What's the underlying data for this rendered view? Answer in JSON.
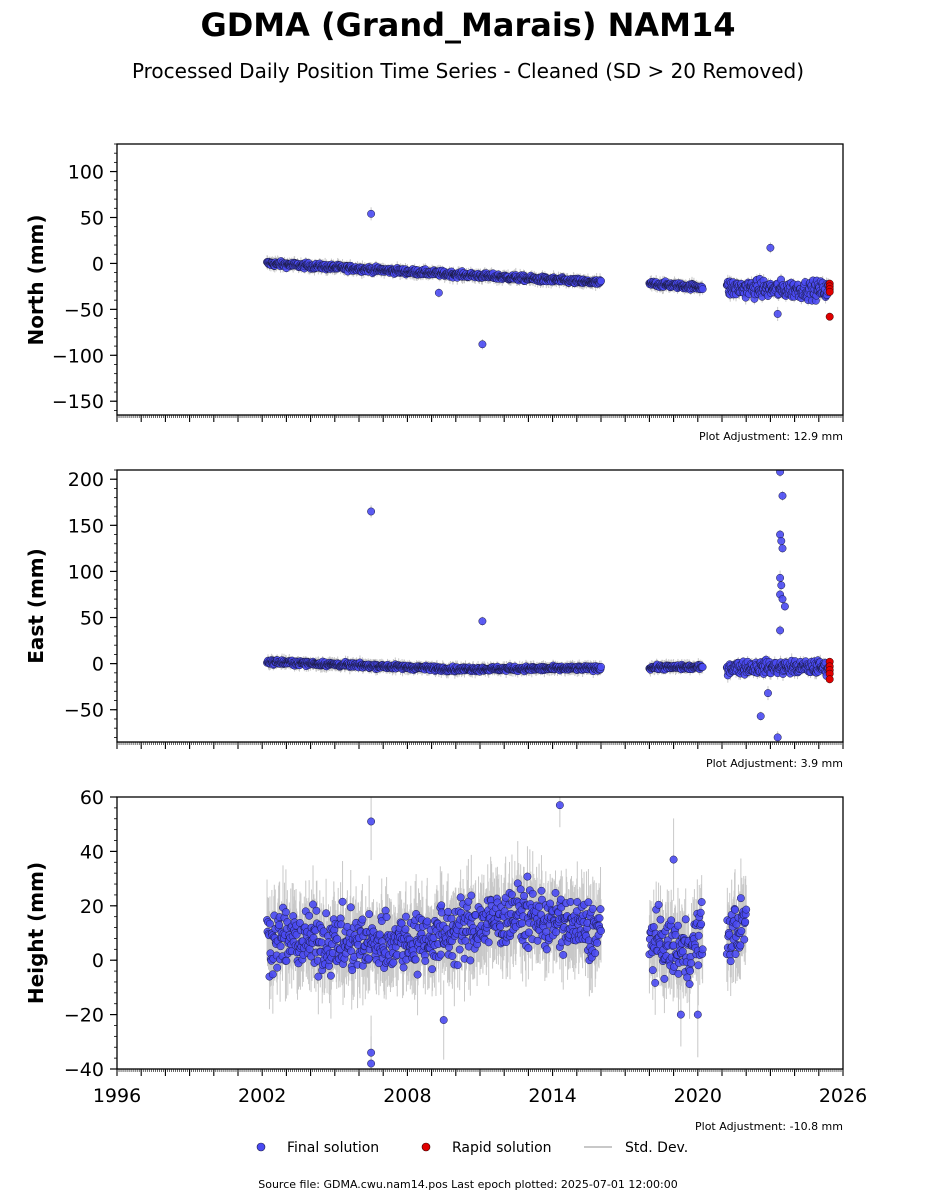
{
  "title": "GDMA (Grand_Marais) NAM14",
  "subtitle": "Processed Daily Position Time Series - Cleaned (SD > 20 Removed)",
  "legend": {
    "final_label": "Final solution",
    "rapid_label": "Rapid solution",
    "std_label": "Std. Dev."
  },
  "colors": {
    "final": "#4a4af2",
    "rapid": "#e00000",
    "std": "#c8c8c8",
    "marker_edge": "#1a1a40"
  },
  "source_text": "Source file: GDMA.cwu.nam14.pos  Last epoch plotted: 2025-07-01 12:00:00",
  "chart_data": [
    {
      "type": "scatter",
      "ylabel": "North (mm)",
      "adjustment_text": "Plot Adjustment: 12.9 mm",
      "xlim": [
        1996,
        2026
      ],
      "ylim": [
        -165,
        130
      ],
      "yticks": [
        100,
        50,
        0,
        -50,
        -100,
        -150
      ],
      "ytick_labels": [
        "100",
        "50",
        "0",
        "−50",
        "−100",
        "−150"
      ],
      "x_tick_labels_shown": false,
      "trend": [
        {
          "x": 2002.2,
          "y": 0
        },
        {
          "x": 2016.0,
          "y": -21
        },
        {
          "x": 2018.0,
          "y": -22
        },
        {
          "x": 2020.2,
          "y": -26
        },
        {
          "x": 2021.2,
          "y": -27
        },
        {
          "x": 2025.4,
          "y": -29
        }
      ],
      "scatter": {
        "base": 2.5,
        "late": 8
      },
      "outliers": [
        {
          "x": 2006.5,
          "y": 54
        },
        {
          "x": 2011.1,
          "y": -88
        },
        {
          "x": 2009.3,
          "y": -32
        },
        {
          "x": 2023.0,
          "y": 17
        },
        {
          "x": 2023.3,
          "y": -55
        }
      ],
      "rapid_points": [
        {
          "x": 2025.45,
          "y": -22
        },
        {
          "x": 2025.45,
          "y": -25
        },
        {
          "x": 2025.45,
          "y": -28
        },
        {
          "x": 2025.45,
          "y": -31
        },
        {
          "x": 2025.45,
          "y": -58
        }
      ]
    },
    {
      "type": "scatter",
      "ylabel": "East (mm)",
      "adjustment_text": "Plot Adjustment: 3.9 mm",
      "xlim": [
        1996,
        2026
      ],
      "ylim": [
        -85,
        210
      ],
      "yticks": [
        200,
        150,
        100,
        50,
        0,
        -50
      ],
      "ytick_labels": [
        "200",
        "150",
        "100",
        "50",
        "0",
        "−50"
      ],
      "x_tick_labels_shown": false,
      "trend": [
        {
          "x": 2002.2,
          "y": 2
        },
        {
          "x": 2010.0,
          "y": -6
        },
        {
          "x": 2016.0,
          "y": -5
        },
        {
          "x": 2018.0,
          "y": -4
        },
        {
          "x": 2020.2,
          "y": -4
        },
        {
          "x": 2021.2,
          "y": -4
        },
        {
          "x": 2025.4,
          "y": -4
        }
      ],
      "scatter": {
        "base": 2.0,
        "late": 6
      },
      "outliers": [
        {
          "x": 2006.5,
          "y": 165
        },
        {
          "x": 2011.1,
          "y": 46
        },
        {
          "x": 2023.4,
          "y": 208
        },
        {
          "x": 2023.5,
          "y": 182
        },
        {
          "x": 2023.4,
          "y": 140
        },
        {
          "x": 2023.45,
          "y": 133
        },
        {
          "x": 2023.5,
          "y": 125
        },
        {
          "x": 2023.4,
          "y": 93
        },
        {
          "x": 2023.45,
          "y": 85
        },
        {
          "x": 2023.4,
          "y": 75
        },
        {
          "x": 2023.5,
          "y": 70
        },
        {
          "x": 2023.6,
          "y": 62
        },
        {
          "x": 2023.4,
          "y": 36
        },
        {
          "x": 2023.3,
          "y": -80
        },
        {
          "x": 2022.6,
          "y": -57
        },
        {
          "x": 2022.9,
          "y": -32
        }
      ],
      "rapid_points": [
        {
          "x": 2025.45,
          "y": 2
        },
        {
          "x": 2025.45,
          "y": -3
        },
        {
          "x": 2025.45,
          "y": -7
        },
        {
          "x": 2025.45,
          "y": -11
        },
        {
          "x": 2025.45,
          "y": -17
        }
      ]
    },
    {
      "type": "scatter",
      "ylabel": "Height (mm)",
      "adjustment_text": "Plot Adjustment: -10.8 mm",
      "xlim": [
        1996,
        2026
      ],
      "ylim": [
        -40,
        60
      ],
      "yticks": [
        60,
        40,
        20,
        0,
        -20,
        -40
      ],
      "ytick_labels": [
        "60",
        "40",
        "20",
        "0",
        "−20",
        "−40"
      ],
      "x_tick_labels_shown": true,
      "xticks": [
        1996,
        2002,
        2008,
        2014,
        2020,
        2026
      ],
      "xtick_labels": [
        "1996",
        "2002",
        "2008",
        "2014",
        "2020",
        "2026"
      ],
      "trend": [
        {
          "x": 2002.2,
          "y": 8
        },
        {
          "x": 2006.0,
          "y": 6
        },
        {
          "x": 2009.0,
          "y": 8
        },
        {
          "x": 2012.5,
          "y": 17
        },
        {
          "x": 2016.0,
          "y": 10
        },
        {
          "x": 2018.0,
          "y": 7
        },
        {
          "x": 2019.5,
          "y": 3
        },
        {
          "x": 2020.2,
          "y": 10
        },
        {
          "x": 2021.2,
          "y": 8
        },
        {
          "x": 2022.0,
          "y": 14
        }
      ],
      "scatter": {
        "base": 9,
        "late": 9
      },
      "outliers": [
        {
          "x": 2006.5,
          "y": 51
        },
        {
          "x": 2014.3,
          "y": 57
        },
        {
          "x": 2006.5,
          "y": -34
        },
        {
          "x": 2006.5,
          "y": -38
        },
        {
          "x": 2009.5,
          "y": -22
        },
        {
          "x": 2019.0,
          "y": 37
        },
        {
          "x": 2019.3,
          "y": -20
        },
        {
          "x": 2020.0,
          "y": -20
        }
      ],
      "rapid_points": []
    }
  ]
}
